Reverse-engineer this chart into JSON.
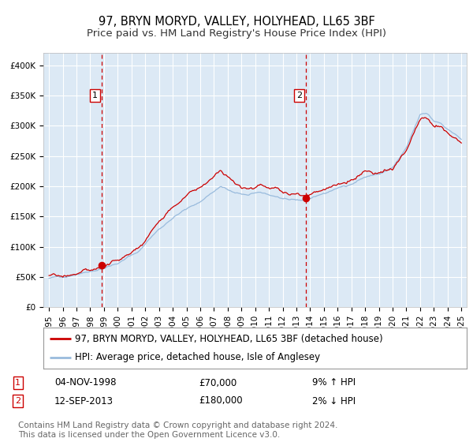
{
  "title": "97, BRYN MORYD, VALLEY, HOLYHEAD, LL65 3BF",
  "subtitle": "Price paid vs. HM Land Registry's House Price Index (HPI)",
  "legend_red": "97, BRYN MORYD, VALLEY, HOLYHEAD, LL65 3BF (detached house)",
  "legend_blue": "HPI: Average price, detached house, Isle of Anglesey",
  "annotation1_date": "04-NOV-1998",
  "annotation1_price": "£70,000",
  "annotation1_hpi": "9% ↑ HPI",
  "annotation1_year": 1998.84,
  "annotation1_value": 70000,
  "annotation2_date": "12-SEP-2013",
  "annotation2_price": "£180,000",
  "annotation2_hpi": "2% ↓ HPI",
  "annotation2_year": 2013.7,
  "annotation2_value": 180000,
  "ytick_labels": [
    "£0",
    "£50K",
    "£100K",
    "£150K",
    "£200K",
    "£250K",
    "£300K",
    "£350K",
    "£400K"
  ],
  "ytick_values": [
    0,
    50000,
    100000,
    150000,
    200000,
    250000,
    300000,
    350000,
    400000
  ],
  "ylim": [
    0,
    420000
  ],
  "xlim_start": 1994.6,
  "xlim_end": 2025.4,
  "background_color": "#ffffff",
  "plot_bg_color": "#dce9f5",
  "grid_color": "#ffffff",
  "red_line_color": "#cc0000",
  "blue_line_color": "#99bbdd",
  "dashed_line_color": "#cc0000",
  "footer_text": "Contains HM Land Registry data © Crown copyright and database right 2024.\nThis data is licensed under the Open Government Licence v3.0.",
  "title_fontsize": 10.5,
  "subtitle_fontsize": 9.5,
  "tick_fontsize": 7.5,
  "legend_fontsize": 8.5,
  "footer_fontsize": 7.5
}
